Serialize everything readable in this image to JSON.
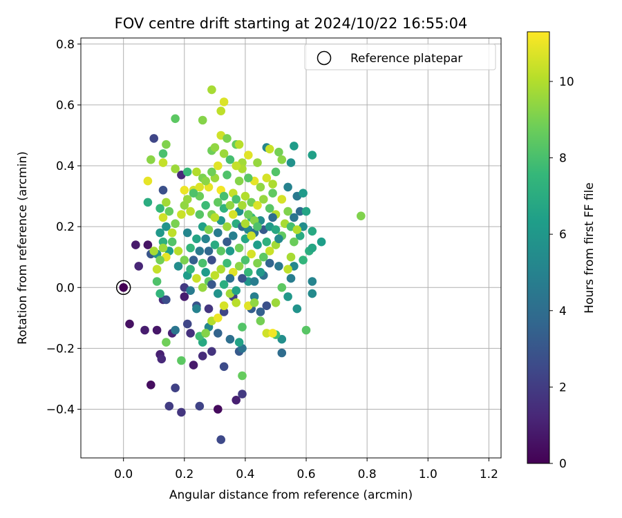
{
  "chart_data": {
    "type": "scatter",
    "title": "FOV centre drift starting at 2024/10/22 16:55:04",
    "xlabel": "Angular distance from reference (arcmin)",
    "ylabel": "Rotation from reference (arcmin)",
    "xlim": [
      -0.14,
      1.24
    ],
    "ylim": [
      -0.56,
      0.82
    ],
    "xticks": [
      0.0,
      0.2,
      0.4,
      0.6,
      0.8,
      1.0,
      1.2
    ],
    "yticks": [
      -0.4,
      -0.2,
      0.0,
      0.2,
      0.4,
      0.6,
      0.8
    ],
    "xtick_labels": [
      "0.0",
      "0.2",
      "0.4",
      "0.6",
      "0.8",
      "1.0",
      "1.2"
    ],
    "ytick_labels": [
      "−0.4",
      "−0.2",
      "0.0",
      "0.2",
      "0.4",
      "0.6",
      "0.8"
    ],
    "grid": true,
    "legend": {
      "placement": "top-right",
      "entries": [
        "Reference platepar"
      ]
    },
    "reference_point": {
      "x": 0.0,
      "y": 0.0,
      "label": "Reference platepar"
    },
    "colorbar": {
      "label": "Hours from first FF file",
      "range": [
        0,
        11.3
      ],
      "ticks": [
        0,
        2,
        4,
        6,
        8,
        10
      ],
      "tick_labels": [
        "0",
        "2",
        "4",
        "6",
        "8",
        "10"
      ],
      "colormap": "viridis"
    },
    "colormap_stops": [
      "#440154",
      "#482878",
      "#3e4989",
      "#31688e",
      "#26828e",
      "#1f9e89",
      "#35b779",
      "#6ece58",
      "#b5de2b",
      "#fde725"
    ],
    "points": [
      [
        0.02,
        -0.12,
        0.5
      ],
      [
        0.04,
        0.14,
        0.8
      ],
      [
        0.05,
        0.07,
        1.2
      ],
      [
        0.07,
        -0.14,
        0.9
      ],
      [
        0.08,
        0.14,
        0.6
      ],
      [
        0.09,
        -0.32,
        0.4
      ],
      [
        0.11,
        -0.14,
        0.7
      ],
      [
        0.12,
        -0.22,
        1.0
      ],
      [
        0.125,
        -0.235,
        1.3
      ],
      [
        0.13,
        -0.04,
        1.5
      ],
      [
        0.15,
        -0.39,
        2.0
      ],
      [
        0.16,
        -0.15,
        1.1
      ],
      [
        0.17,
        -0.33,
        2.2
      ],
      [
        0.19,
        -0.41,
        1.8
      ],
      [
        0.2,
        -0.03,
        0.9
      ],
      [
        0.21,
        -0.12,
        2.4
      ],
      [
        0.22,
        -0.15,
        1.6
      ],
      [
        0.23,
        -0.255,
        0.8
      ],
      [
        0.25,
        -0.39,
        2.3
      ],
      [
        0.26,
        -0.225,
        1.4
      ],
      [
        0.29,
        -0.21,
        1.7
      ],
      [
        0.31,
        -0.4,
        0.3
      ],
      [
        0.32,
        -0.5,
        2.5
      ],
      [
        0.33,
        -0.26,
        2.6
      ],
      [
        0.37,
        -0.37,
        1.0
      ],
      [
        0.39,
        -0.35,
        1.9
      ],
      [
        0.1,
        0.49,
        2.4
      ],
      [
        0.13,
        0.32,
        2.8
      ],
      [
        0.19,
        0.37,
        1.3
      ],
      [
        0.09,
        0.11,
        3.0
      ],
      [
        0.14,
        -0.04,
        2.7
      ],
      [
        0.2,
        0.0,
        1.9
      ],
      [
        0.24,
        -0.06,
        2.9
      ],
      [
        0.28,
        -0.07,
        1.8
      ],
      [
        0.33,
        -0.08,
        2.4
      ],
      [
        0.36,
        -0.03,
        2.1
      ],
      [
        0.38,
        -0.21,
        3.2
      ],
      [
        0.42,
        -0.07,
        3.4
      ],
      [
        0.45,
        -0.08,
        3.5
      ],
      [
        0.47,
        -0.06,
        2.8
      ],
      [
        0.52,
        -0.215,
        4.0
      ],
      [
        0.47,
        0.46,
        5.2
      ],
      [
        0.56,
        0.465,
        6.2
      ],
      [
        0.62,
        0.435,
        6.4
      ],
      [
        0.55,
        0.41,
        5.7
      ],
      [
        0.54,
        0.33,
        5.0
      ],
      [
        0.57,
        0.3,
        4.6
      ],
      [
        0.59,
        0.31,
        6.1
      ],
      [
        0.58,
        0.25,
        3.9
      ],
      [
        0.6,
        0.25,
        6.6
      ],
      [
        0.56,
        0.23,
        4.4
      ],
      [
        0.59,
        0.2,
        5.5
      ],
      [
        0.62,
        0.185,
        6.8
      ],
      [
        0.65,
        0.15,
        6.3
      ],
      [
        0.58,
        0.17,
        6.9
      ],
      [
        0.61,
        0.12,
        7.1
      ],
      [
        0.62,
        0.13,
        6.7
      ],
      [
        0.59,
        0.09,
        7.4
      ],
      [
        0.56,
        0.07,
        5.3
      ],
      [
        0.55,
        0.03,
        4.8
      ],
      [
        0.54,
        -0.03,
        6.0
      ],
      [
        0.57,
        -0.07,
        5.8
      ],
      [
        0.52,
        -0.17,
        5.6
      ],
      [
        0.5,
        -0.155,
        7.8
      ],
      [
        0.6,
        -0.14,
        8.3
      ],
      [
        0.62,
        -0.02,
        5.4
      ],
      [
        0.62,
        0.02,
        5.1
      ],
      [
        0.51,
        0.07,
        4.5
      ],
      [
        0.48,
        0.08,
        3.7
      ],
      [
        0.46,
        0.04,
        4.2
      ],
      [
        0.43,
        -0.03,
        4.9
      ],
      [
        0.41,
        0.02,
        5.9
      ],
      [
        0.39,
        -0.2,
        4.3
      ],
      [
        0.38,
        -0.18,
        6.5
      ],
      [
        0.35,
        -0.17,
        4.1
      ],
      [
        0.31,
        -0.15,
        3.6
      ],
      [
        0.28,
        -0.13,
        5.2
      ],
      [
        0.26,
        -0.18,
        6.8
      ],
      [
        0.24,
        -0.07,
        5.0
      ],
      [
        0.22,
        -0.01,
        4.7
      ],
      [
        0.21,
        0.04,
        6.2
      ],
      [
        0.18,
        0.07,
        5.5
      ],
      [
        0.17,
        -0.14,
        4.4
      ],
      [
        0.15,
        0.12,
        6.3
      ],
      [
        0.14,
        0.2,
        5.8
      ],
      [
        0.13,
        0.15,
        7.2
      ],
      [
        0.12,
        0.18,
        6.0
      ],
      [
        0.11,
        0.11,
        5.6
      ],
      [
        0.08,
        0.28,
        7.0
      ],
      [
        0.12,
        0.26,
        7.5
      ],
      [
        0.08,
        0.35,
        10.9
      ],
      [
        0.09,
        0.42,
        9.3
      ],
      [
        0.13,
        0.41,
        10.3
      ],
      [
        0.13,
        0.44,
        8.0
      ],
      [
        0.14,
        0.47,
        9.1
      ],
      [
        0.17,
        0.39,
        9.6
      ],
      [
        0.21,
        0.38,
        7.6
      ],
      [
        0.17,
        0.555,
        8.4
      ],
      [
        0.26,
        0.55,
        9.2
      ],
      [
        0.29,
        0.65,
        9.8
      ],
      [
        0.32,
        0.58,
        10.2
      ],
      [
        0.33,
        0.61,
        10.7
      ],
      [
        0.32,
        0.5,
        10.5
      ],
      [
        0.34,
        0.49,
        9.0
      ],
      [
        0.29,
        0.45,
        8.8
      ],
      [
        0.3,
        0.46,
        9.4
      ],
      [
        0.37,
        0.47,
        8.6
      ],
      [
        0.38,
        0.47,
        10.1
      ],
      [
        0.39,
        0.41,
        9.7
      ],
      [
        0.41,
        0.435,
        10.8
      ],
      [
        0.44,
        0.41,
        9.5
      ],
      [
        0.48,
        0.455,
        10.4
      ],
      [
        0.51,
        0.445,
        8.9
      ],
      [
        0.52,
        0.42,
        9.3
      ],
      [
        0.5,
        0.38,
        8.2
      ],
      [
        0.49,
        0.34,
        9.9
      ],
      [
        0.47,
        0.36,
        10.6
      ],
      [
        0.78,
        0.235,
        9.1
      ],
      [
        0.24,
        0.38,
        10.0
      ],
      [
        0.26,
        0.36,
        9.0
      ],
      [
        0.23,
        0.32,
        10.5
      ],
      [
        0.2,
        0.32,
        11.0
      ],
      [
        0.2,
        0.27,
        9.4
      ],
      [
        0.22,
        0.25,
        10.2
      ],
      [
        0.25,
        0.3,
        8.7
      ],
      [
        0.28,
        0.33,
        10.9
      ],
      [
        0.3,
        0.36,
        9.6
      ],
      [
        0.32,
        0.32,
        11.1
      ],
      [
        0.34,
        0.37,
        8.1
      ],
      [
        0.36,
        0.31,
        10.3
      ],
      [
        0.38,
        0.35,
        9.2
      ],
      [
        0.4,
        0.3,
        10.0
      ],
      [
        0.42,
        0.28,
        8.9
      ],
      [
        0.44,
        0.27,
        10.7
      ],
      [
        0.46,
        0.29,
        9.5
      ],
      [
        0.48,
        0.26,
        8.3
      ],
      [
        0.5,
        0.24,
        10.1
      ],
      [
        0.53,
        0.21,
        9.8
      ],
      [
        0.55,
        0.2,
        7.9
      ],
      [
        0.52,
        0.17,
        8.5
      ],
      [
        0.5,
        0.14,
        9.7
      ],
      [
        0.48,
        0.12,
        10.4
      ],
      [
        0.46,
        0.1,
        8.4
      ],
      [
        0.44,
        0.08,
        9.1
      ],
      [
        0.42,
        0.11,
        10.6
      ],
      [
        0.4,
        0.09,
        8.0
      ],
      [
        0.38,
        0.07,
        9.3
      ],
      [
        0.36,
        0.05,
        10.8
      ],
      [
        0.34,
        0.08,
        7.7
      ],
      [
        0.32,
        0.06,
        9.9
      ],
      [
        0.3,
        0.04,
        10.2
      ],
      [
        0.28,
        0.02,
        8.6
      ],
      [
        0.26,
        0.0,
        9.5
      ],
      [
        0.24,
        0.03,
        10.4
      ],
      [
        0.22,
        0.06,
        7.3
      ],
      [
        0.2,
        0.09,
        9.0
      ],
      [
        0.18,
        0.12,
        10.1
      ],
      [
        0.16,
        0.15,
        8.2
      ],
      [
        0.14,
        0.1,
        10.9
      ],
      [
        0.13,
        0.13,
        9.6
      ],
      [
        0.12,
        0.09,
        8.9
      ],
      [
        0.11,
        0.06,
        10.3
      ],
      [
        0.1,
        0.12,
        9.8
      ],
      [
        0.11,
        0.02,
        8.1
      ],
      [
        0.12,
        -0.02,
        7.4
      ],
      [
        0.14,
        -0.18,
        8.8
      ],
      [
        0.19,
        -0.24,
        8.4
      ],
      [
        0.25,
        -0.16,
        7.8
      ],
      [
        0.27,
        -0.15,
        9.2
      ],
      [
        0.29,
        -0.11,
        10.0
      ],
      [
        0.31,
        -0.1,
        11.0
      ],
      [
        0.33,
        -0.06,
        10.6
      ],
      [
        0.35,
        -0.02,
        9.7
      ],
      [
        0.37,
        -0.05,
        10.1
      ],
      [
        0.39,
        -0.13,
        8.2
      ],
      [
        0.39,
        -0.29,
        8.6
      ],
      [
        0.41,
        -0.06,
        10.8
      ],
      [
        0.43,
        -0.05,
        9.4
      ],
      [
        0.45,
        -0.11,
        8.9
      ],
      [
        0.47,
        -0.15,
        10.5
      ],
      [
        0.49,
        -0.15,
        11.1
      ],
      [
        0.5,
        -0.05,
        9.6
      ],
      [
        0.52,
        0.0,
        8.4
      ],
      [
        0.54,
        0.06,
        10.2
      ],
      [
        0.55,
        0.1,
        9.8
      ],
      [
        0.56,
        0.15,
        8.7
      ],
      [
        0.57,
        0.19,
        10.0
      ],
      [
        0.54,
        0.25,
        9.1
      ],
      [
        0.52,
        0.29,
        10.6
      ],
      [
        0.49,
        0.31,
        8.5
      ],
      [
        0.45,
        0.33,
        9.4
      ],
      [
        0.43,
        0.35,
        10.9
      ],
      [
        0.41,
        0.36,
        8.3
      ],
      [
        0.39,
        0.39,
        9.9
      ],
      [
        0.37,
        0.4,
        10.3
      ],
      [
        0.35,
        0.42,
        7.9
      ],
      [
        0.33,
        0.44,
        9.6
      ],
      [
        0.31,
        0.4,
        10.8
      ],
      [
        0.29,
        0.38,
        8.8
      ],
      [
        0.27,
        0.35,
        9.3
      ],
      [
        0.25,
        0.33,
        10.7
      ],
      [
        0.23,
        0.31,
        8.1
      ],
      [
        0.21,
        0.29,
        9.5
      ],
      [
        0.19,
        0.24,
        10.4
      ],
      [
        0.17,
        0.21,
        9.0
      ],
      [
        0.16,
        0.18,
        10.2
      ],
      [
        0.15,
        0.25,
        8.6
      ],
      [
        0.14,
        0.28,
        9.7
      ],
      [
        0.13,
        0.23,
        10.5
      ],
      [
        0.26,
        0.2,
        6.4
      ],
      [
        0.27,
        0.16,
        5.1
      ],
      [
        0.28,
        0.12,
        3.8
      ],
      [
        0.29,
        0.09,
        2.7
      ],
      [
        0.3,
        0.14,
        6.9
      ],
      [
        0.31,
        0.18,
        4.7
      ],
      [
        0.32,
        0.22,
        5.9
      ],
      [
        0.33,
        0.26,
        7.3
      ],
      [
        0.34,
        0.15,
        3.3
      ],
      [
        0.35,
        0.12,
        6.1
      ],
      [
        0.36,
        0.17,
        4.9
      ],
      [
        0.37,
        0.21,
        7.0
      ],
      [
        0.38,
        0.25,
        5.7
      ],
      [
        0.39,
        0.2,
        3.9
      ],
      [
        0.4,
        0.16,
        6.7
      ],
      [
        0.41,
        0.19,
        5.3
      ],
      [
        0.42,
        0.23,
        7.6
      ],
      [
        0.43,
        0.18,
        4.3
      ],
      [
        0.44,
        0.14,
        6.3
      ],
      [
        0.45,
        0.22,
        5.5
      ],
      [
        0.46,
        0.19,
        3.2
      ],
      [
        0.47,
        0.15,
        7.2
      ],
      [
        0.48,
        0.2,
        6.0
      ],
      [
        0.49,
        0.23,
        4.0
      ],
      [
        0.5,
        0.19,
        6.8
      ],
      [
        0.51,
        0.16,
        5.4
      ],
      [
        0.25,
        0.12,
        4.6
      ],
      [
        0.24,
        0.16,
        6.6
      ],
      [
        0.23,
        0.09,
        3.4
      ],
      [
        0.22,
        0.13,
        7.4
      ],
      [
        0.21,
        0.18,
        5.2
      ],
      [
        0.27,
        0.05,
        6.2
      ],
      [
        0.29,
        0.01,
        3.1
      ],
      [
        0.31,
        -0.02,
        5.8
      ],
      [
        0.33,
        0.01,
        7.1
      ],
      [
        0.35,
        0.03,
        4.2
      ],
      [
        0.37,
        -0.01,
        6.5
      ],
      [
        0.39,
        0.03,
        2.9
      ],
      [
        0.41,
        0.05,
        7.5
      ],
      [
        0.43,
        0.02,
        4.8
      ],
      [
        0.45,
        0.05,
        6.0
      ],
      [
        0.25,
        0.24,
        8.3
      ],
      [
        0.27,
        0.27,
        7.7
      ],
      [
        0.29,
        0.24,
        9.0
      ],
      [
        0.31,
        0.28,
        8.5
      ],
      [
        0.33,
        0.3,
        7.9
      ],
      [
        0.35,
        0.27,
        9.4
      ],
      [
        0.37,
        0.29,
        8.0
      ],
      [
        0.39,
        0.27,
        9.8
      ],
      [
        0.41,
        0.24,
        8.7
      ],
      [
        0.43,
        0.22,
        9.2
      ],
      [
        0.26,
        0.08,
        8.0
      ],
      [
        0.28,
        0.19,
        9.1
      ],
      [
        0.3,
        0.23,
        10.1
      ],
      [
        0.32,
        0.12,
        8.4
      ],
      [
        0.34,
        0.2,
        9.6
      ],
      [
        0.36,
        0.24,
        10.6
      ],
      [
        0.38,
        0.13,
        8.8
      ],
      [
        0.4,
        0.21,
        9.9
      ],
      [
        0.42,
        0.17,
        10.4
      ],
      [
        0.44,
        0.2,
        8.1
      ],
      [
        0.0,
        0.0,
        0.0
      ]
    ]
  }
}
